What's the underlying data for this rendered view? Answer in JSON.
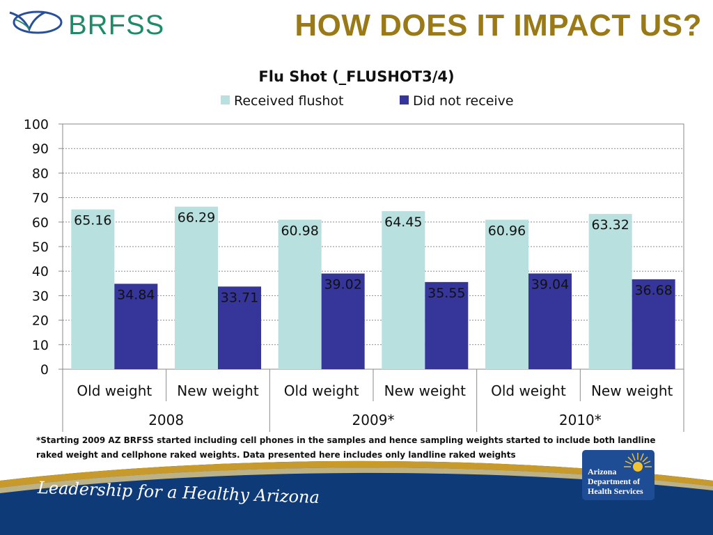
{
  "header": {
    "logo_text": "BRFSS",
    "title": "HOW DOES IT IMPACT US?"
  },
  "colors": {
    "received": "#b7e0df",
    "not_received": "#35359a",
    "title": "#9a7a17",
    "brand_green": "#1f8a6a",
    "banner_blue": "#0f3a78",
    "banner_gold": "#c89a2c"
  },
  "chart_data": {
    "type": "bar",
    "title": "Flu Shot (_FLUSHOT3/4)",
    "categories": [
      "Old weight",
      "New weight",
      "Old weight",
      "New weight",
      "Old weight",
      "New weight"
    ],
    "groups": [
      "2008",
      "2009*",
      "2010*"
    ],
    "series": [
      {
        "name": "Received flushot",
        "values": [
          65.16,
          66.29,
          60.98,
          64.45,
          60.96,
          63.32
        ]
      },
      {
        "name": "Did not receive",
        "values": [
          34.84,
          33.71,
          39.02,
          35.55,
          39.04,
          36.68
        ]
      }
    ],
    "ylim": [
      0,
      100
    ],
    "yticks": [
      0,
      10,
      20,
      30,
      40,
      50,
      60,
      70,
      80,
      90,
      100
    ],
    "xlabel": "",
    "ylabel": "",
    "grid": true,
    "legend": "top-center"
  },
  "footnote": "*Starting 2009 AZ BRFSS started including cell phones in the samples and hence sampling weights started to include both landline raked weight and cellphone raked weights. Data presented here includes only landline raked weights",
  "banner": {
    "tagline": "Leadership for a Healthy Arizona",
    "badge_lines": [
      "Arizona",
      "Department of",
      "Health Services"
    ]
  },
  "icons": {
    "brand": "bird-swoosh-icon",
    "badge": "sun-icon"
  }
}
